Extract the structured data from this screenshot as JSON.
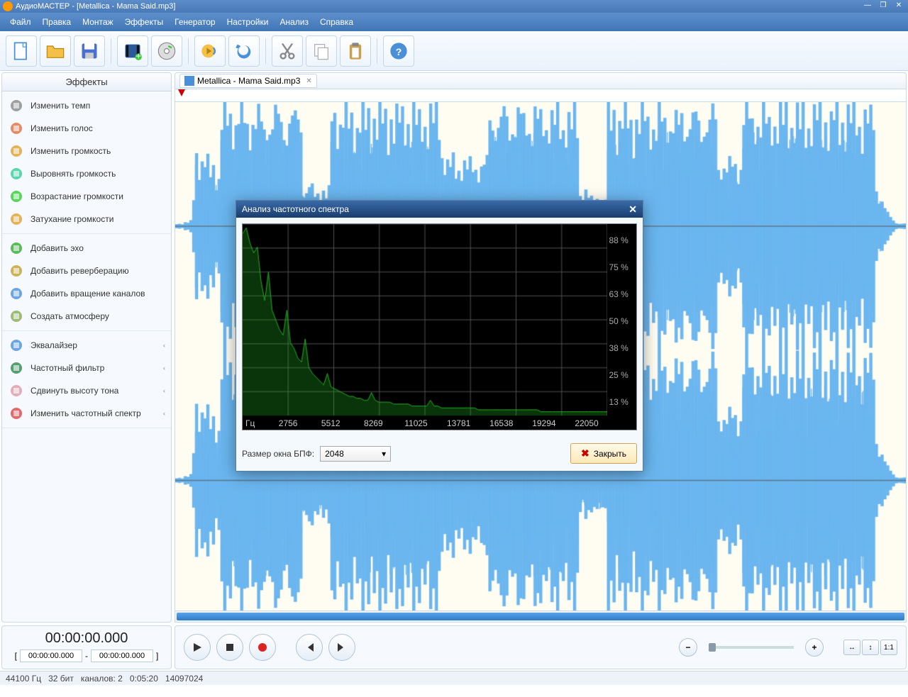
{
  "titlebar": {
    "text": "АудиоМАСТЕР - [Metallica - Mama Said.mp3]"
  },
  "menu": [
    "Файл",
    "Правка",
    "Монтаж",
    "Эффекты",
    "Генератор",
    "Настройки",
    "Анализ",
    "Справка"
  ],
  "sidebar": {
    "header": "Эффекты",
    "group1": [
      {
        "label": "Изменить темп",
        "icon": "clock"
      },
      {
        "label": "Изменить голос",
        "icon": "voice"
      },
      {
        "label": "Изменить громкость",
        "icon": "vol"
      },
      {
        "label": "Выровнять громкость",
        "icon": "level"
      },
      {
        "label": "Возрастание громкости",
        "icon": "fadein"
      },
      {
        "label": "Затухание громкости",
        "icon": "fadeout"
      }
    ],
    "group2": [
      {
        "label": "Добавить эхо",
        "icon": "echo"
      },
      {
        "label": "Добавить реверберацию",
        "icon": "reverb"
      },
      {
        "label": "Добавить вращение каналов",
        "icon": "rotate"
      },
      {
        "label": "Создать атмосферу",
        "icon": "atmo"
      }
    ],
    "group3": [
      {
        "label": "Эквалайзер",
        "icon": "eq",
        "chev": true
      },
      {
        "label": "Частотный фильтр",
        "icon": "filter",
        "chev": true
      },
      {
        "label": "Сдвинуть высоту тона",
        "icon": "pitch",
        "chev": true
      },
      {
        "label": "Изменить частотный спектр",
        "icon": "spectrum",
        "chev": true
      }
    ]
  },
  "tab": {
    "label": "Metallica - Mama Said.mp3"
  },
  "time": {
    "big": "00:00:00.000",
    "from": "00:00:00.000",
    "to": "00:00:00.000",
    "sep": "-"
  },
  "status": {
    "rate": "44100 Гц",
    "bits": "32 бит",
    "channels": "каналов: 2",
    "dur": "0:05:20",
    "samples": "14097024"
  },
  "dialog": {
    "title": "Анализ частотного спектра",
    "fft_label": "Размер окна БПФ:",
    "fft_value": "2048",
    "close": "Закрыть",
    "xunit": "Гц",
    "xticks": [
      "2756",
      "5512",
      "8269",
      "11025",
      "13781",
      "16538",
      "19294",
      "22050"
    ],
    "yticks": [
      "88 %",
      "75 %",
      "63 %",
      "50 %",
      "38 %",
      "25 %",
      "13 %"
    ],
    "spectrum": {
      "type": "line",
      "xmax": 22050,
      "ymax": 100,
      "grid_color": "#505050",
      "line_color": "#20b020",
      "bg": "#000000",
      "values": [
        95,
        98,
        90,
        85,
        88,
        70,
        60,
        75,
        55,
        50,
        45,
        42,
        55,
        38,
        35,
        30,
        28,
        40,
        25,
        22,
        20,
        18,
        16,
        22,
        15,
        14,
        13,
        12,
        11,
        10,
        10,
        9,
        9,
        8,
        8,
        12,
        8,
        7,
        7,
        7,
        7,
        6,
        6,
        6,
        6,
        6,
        5,
        5,
        5,
        5,
        5,
        8,
        5,
        5,
        4,
        4,
        4,
        4,
        4,
        4,
        4,
        4,
        4,
        4,
        3,
        3,
        3,
        3,
        3,
        3,
        3,
        3,
        3,
        3,
        3,
        3,
        3,
        3,
        3,
        3,
        3,
        2,
        2,
        2,
        2,
        2,
        2,
        2,
        2,
        2,
        2,
        2,
        2,
        2,
        2,
        2,
        2,
        2,
        2,
        2
      ]
    }
  },
  "waveform": {
    "color": "#6bb6ef",
    "bg": "#fffdf2",
    "samples": 260,
    "envelope": [
      2,
      2,
      2,
      3,
      3,
      4,
      25,
      60,
      55,
      50,
      52,
      48,
      45,
      50,
      42,
      38,
      85,
      90,
      88,
      92,
      87,
      85,
      90,
      88,
      86,
      84,
      82,
      90,
      85,
      87,
      83,
      80,
      88,
      86,
      84,
      90,
      85,
      87,
      83,
      80,
      88,
      86,
      84,
      90,
      85,
      30,
      28,
      32,
      30,
      25,
      28,
      26,
      30,
      24,
      28,
      90,
      92,
      88,
      85,
      90,
      87,
      84,
      88,
      85,
      82,
      90,
      86,
      83,
      88,
      85,
      90,
      87,
      84,
      88,
      85,
      82,
      90,
      86,
      83,
      88,
      85,
      90,
      87,
      84,
      88,
      85,
      82,
      90,
      86,
      83,
      88,
      85,
      90,
      87,
      60,
      55,
      50,
      48,
      52,
      45,
      50,
      48,
      52,
      45,
      50,
      48,
      52,
      45,
      50,
      48,
      52,
      88,
      90,
      85,
      88,
      84,
      90,
      86,
      82,
      88,
      85,
      90,
      87,
      84,
      88,
      85,
      82,
      90,
      86,
      83,
      88,
      85,
      90,
      87,
      84,
      88,
      85,
      82,
      90,
      86,
      83,
      88,
      85,
      25,
      22,
      28,
      25,
      20,
      24,
      22,
      26,
      20,
      24,
      90,
      88,
      92,
      86,
      84,
      90,
      85,
      87,
      83,
      80,
      88,
      86,
      84,
      90,
      85,
      87,
      83,
      80,
      88,
      86,
      84,
      90,
      85,
      87,
      83,
      80,
      88,
      86,
      84,
      90,
      85,
      87,
      83,
      80,
      88,
      86,
      84,
      90,
      85,
      50,
      48,
      52,
      45,
      50,
      48,
      52,
      45,
      50,
      90,
      92,
      88,
      85,
      90,
      87,
      84,
      88,
      85,
      82,
      90,
      86,
      83,
      88,
      85,
      90,
      87,
      84,
      88,
      85,
      82,
      90,
      86,
      83,
      88,
      85,
      90,
      87,
      84,
      88,
      85,
      82,
      90,
      86,
      83,
      88,
      85,
      90,
      87,
      84,
      88,
      85,
      82,
      90,
      86,
      83,
      88,
      30,
      25,
      20,
      15,
      10,
      8,
      5,
      3,
      2,
      2,
      2
    ]
  }
}
